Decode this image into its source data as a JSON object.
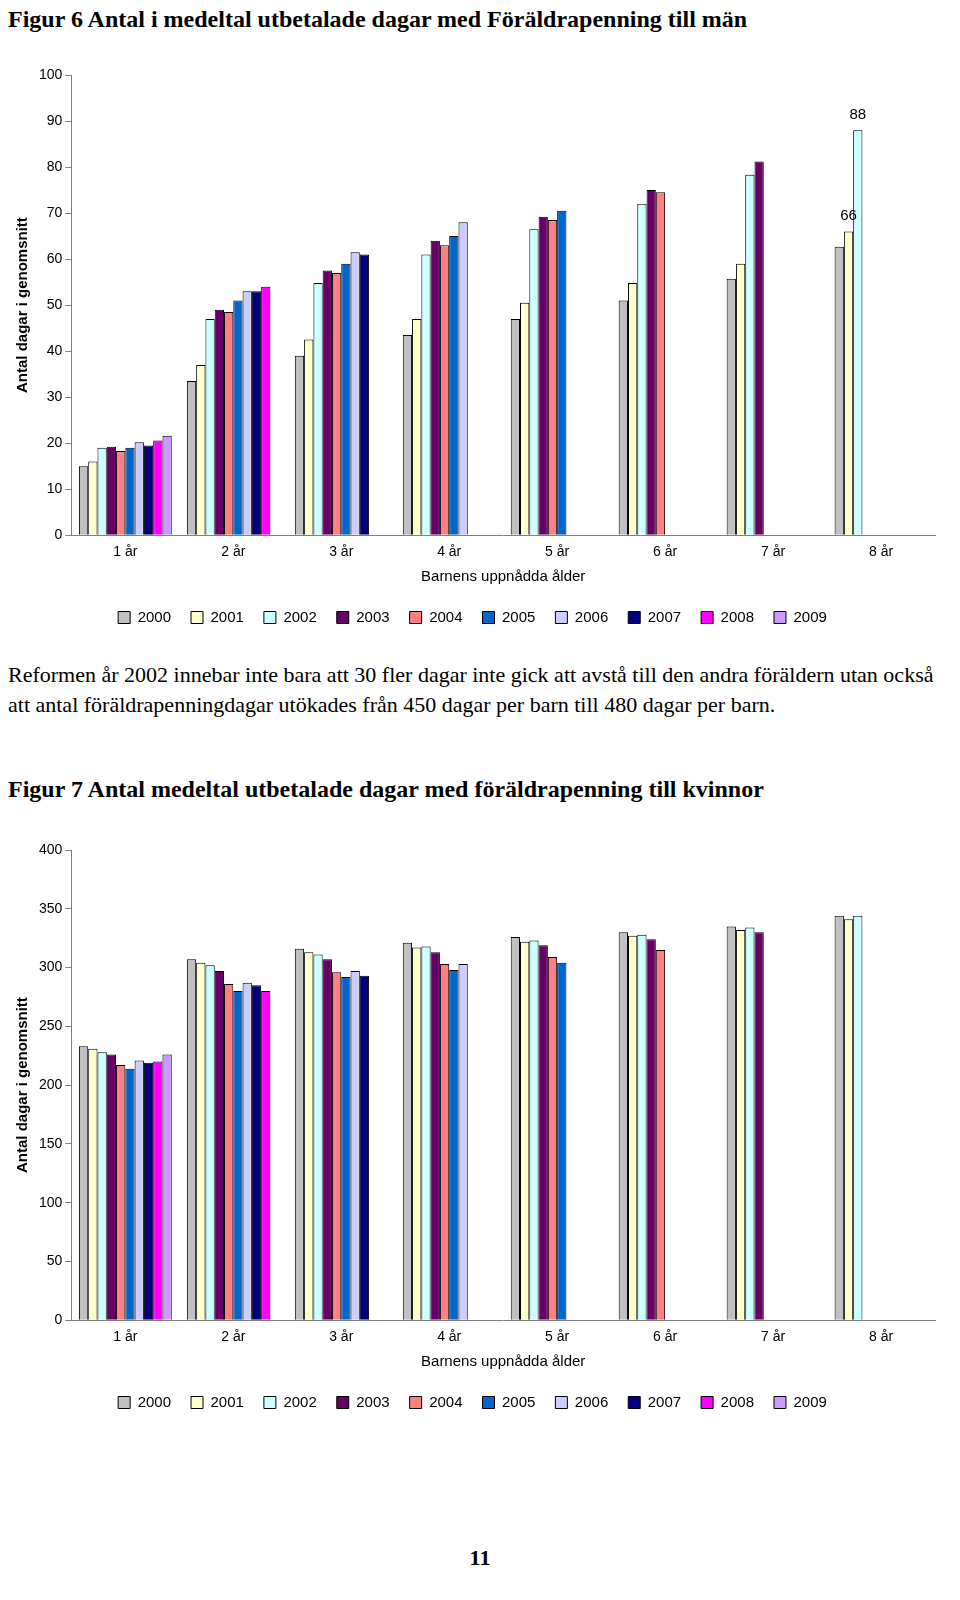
{
  "chart_data": [
    {
      "type": "bar",
      "title": "Figur 6 Antal i medeltal utbetalade dagar med Föräldrapenning till män",
      "x_label": "Barnens uppnådda ålder",
      "y_label": "Antal dagar i genomsnitt",
      "categories": [
        "1 år",
        "2 år",
        "3 år",
        "4 år",
        "5 år",
        "6 år",
        "7 år",
        "8 år"
      ],
      "series": [
        {
          "name": "2000",
          "color": "#c0c0c0",
          "values": [
            15,
            33.5,
            39,
            43.5,
            47,
            51,
            55.7,
            62.7
          ]
        },
        {
          "name": "2001",
          "color": "#ffffcc",
          "values": [
            16,
            37,
            42.5,
            47,
            50.5,
            54.8,
            59,
            66
          ]
        },
        {
          "name": "2002",
          "color": "#ccffff",
          "values": [
            19,
            47,
            54.8,
            61,
            66.5,
            72,
            78.3,
            88
          ]
        },
        {
          "name": "2003",
          "color": "#660066",
          "values": [
            19.2,
            49,
            57.5,
            64,
            69.2,
            75,
            81.2,
            null
          ]
        },
        {
          "name": "2004",
          "color": "#ff8080",
          "values": [
            18.3,
            48.5,
            57,
            63,
            68.5,
            74.5,
            null,
            null
          ]
        },
        {
          "name": "2005",
          "color": "#0066cc",
          "values": [
            19,
            51,
            59,
            65,
            70.5,
            null,
            null,
            null
          ]
        },
        {
          "name": "2006",
          "color": "#ccccff",
          "values": [
            20.2,
            53,
            61.5,
            68,
            null,
            null,
            null,
            null
          ]
        },
        {
          "name": "2007",
          "color": "#000080",
          "values": [
            19.5,
            53,
            61,
            null,
            null,
            null,
            null,
            null
          ]
        },
        {
          "name": "2008",
          "color": "#ff00ff",
          "values": [
            20.6,
            54,
            null,
            null,
            null,
            null,
            null,
            null
          ]
        },
        {
          "name": "2009",
          "color": "#cc99ff",
          "values": [
            21.6,
            null,
            null,
            null,
            null,
            null,
            null,
            null
          ]
        }
      ],
      "ylim": [
        0,
        100
      ],
      "yticks": [
        0,
        10,
        20,
        30,
        40,
        50,
        60,
        70,
        80,
        90,
        100
      ],
      "grid": false,
      "legend": "bottom",
      "annotations": [
        {
          "text": "88",
          "category": "8 år",
          "series": "2002"
        },
        {
          "text": "66",
          "category": "8 år",
          "series": "2001"
        }
      ]
    },
    {
      "type": "bar",
      "title": "Figur 7 Antal medeltal utbetalade dagar med föräldrapenning till kvinnor",
      "x_label": "Barnens uppnådda ålder",
      "y_label": "Antal dagar i genomsnitt",
      "categories": [
        "1 år",
        "2 år",
        "3 år",
        "4 år",
        "5 år",
        "6 år",
        "7 år",
        "8 år"
      ],
      "series": [
        {
          "name": "2000",
          "color": "#c0c0c0",
          "values": [
            233,
            307,
            316,
            321,
            326,
            330,
            335,
            344
          ]
        },
        {
          "name": "2001",
          "color": "#ffffcc",
          "values": [
            231,
            304,
            313,
            317,
            322,
            327,
            332,
            341
          ]
        },
        {
          "name": "2002",
          "color": "#ccffff",
          "values": [
            228,
            302,
            311,
            318,
            323,
            328,
            334,
            344
          ]
        },
        {
          "name": "2003",
          "color": "#660066",
          "values": [
            226,
            297,
            307,
            313,
            319,
            324,
            330,
            null
          ]
        },
        {
          "name": "2004",
          "color": "#ff8080",
          "values": [
            217,
            286,
            296,
            303,
            309,
            315,
            null,
            null
          ]
        },
        {
          "name": "2005",
          "color": "#0066cc",
          "values": [
            214,
            280,
            292,
            298,
            304,
            null,
            null,
            null
          ]
        },
        {
          "name": "2006",
          "color": "#ccccff",
          "values": [
            221,
            287,
            297,
            303,
            null,
            null,
            null,
            null
          ]
        },
        {
          "name": "2007",
          "color": "#000080",
          "values": [
            219,
            285,
            293,
            null,
            null,
            null,
            null,
            null
          ]
        },
        {
          "name": "2008",
          "color": "#ff00ff",
          "values": [
            220,
            280,
            null,
            null,
            null,
            null,
            null,
            null
          ]
        },
        {
          "name": "2009",
          "color": "#cc99ff",
          "values": [
            226,
            null,
            null,
            null,
            null,
            null,
            null,
            null
          ]
        }
      ],
      "ylim": [
        0,
        400
      ],
      "yticks": [
        0,
        50,
        100,
        150,
        200,
        250,
        300,
        350,
        400
      ],
      "grid": false,
      "legend": "bottom"
    }
  ],
  "text": "Reformen år 2002 innebar inte bara att 30 fler dagar inte gick att avstå till den andra föräldern utan också att antal föräldrapenningdagar utökades från 450 dagar per barn till 480 dagar per barn.",
  "page_number": 11
}
